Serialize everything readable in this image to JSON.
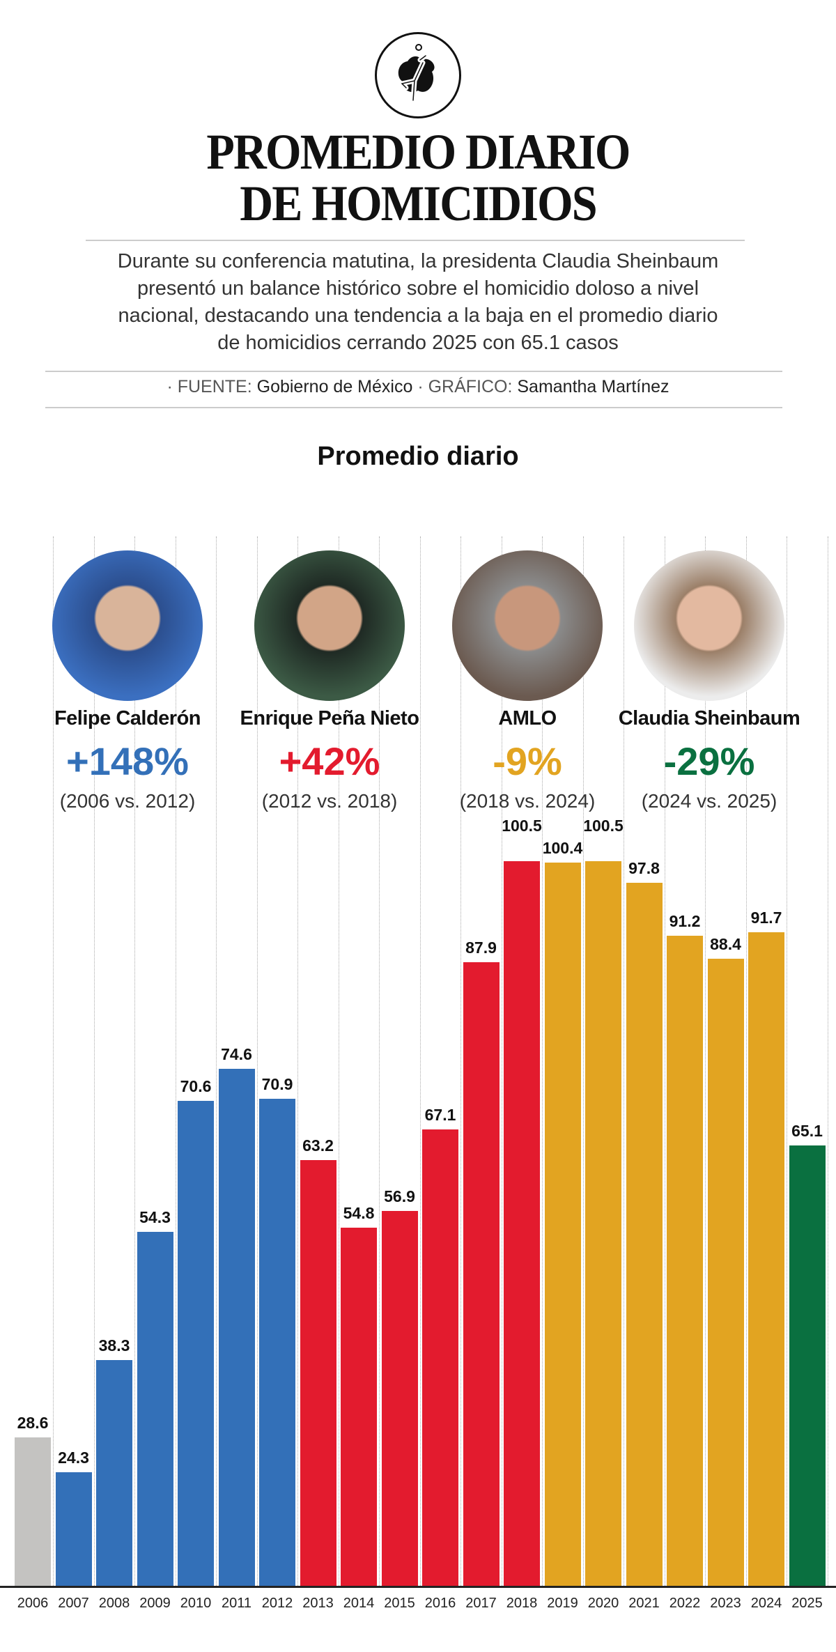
{
  "header": {
    "logo_icon": "crime-scene-body-icon",
    "title_line1": "PROMEDIO DIARIO",
    "title_line2": "DE HOMICIDIOS",
    "description": [
      "Durante su conferencia matutina, la presidenta Claudia Sheinbaum",
      "presentó un balance histórico sobre el homicidio doloso a nivel",
      "nacional, destacando una tendencia a la baja en el promedio diario",
      "de homicidios cerrando 2025 con 65.1 casos"
    ],
    "source_label": "· FUENTE:",
    "source_value": "Gobierno de México",
    "graphic_label": "· GRÁFICO:",
    "graphic_value": "Samantha Martínez"
  },
  "presidents": [
    {
      "name": "Felipe Calderón",
      "change": "+148%",
      "period": "(2006 vs. 2012)",
      "color": "#3370b8"
    },
    {
      "name": "Enrique Peña Nieto",
      "change": "+42%",
      "period": "(2012 vs. 2018)",
      "color": "#e31b2e"
    },
    {
      "name": "AMLO",
      "change": "-9%",
      "period": "(2018 vs. 2024)",
      "color": "#e2a421"
    },
    {
      "name": "Claudia Sheinbaum",
      "change": "-29%",
      "period": "(2024 vs. 2025)",
      "color": "#0a7040"
    }
  ],
  "chart_data": {
    "type": "bar",
    "title": "Promedio diario",
    "categories": [
      "2006",
      "2007",
      "2008",
      "2009",
      "2010",
      "2011",
      "2012",
      "2013",
      "2014",
      "2015",
      "2016",
      "2017",
      "2018",
      "2019",
      "2020",
      "2021",
      "2022",
      "2023",
      "2024",
      "2025"
    ],
    "values": [
      28.6,
      24.3,
      38.3,
      54.3,
      70.6,
      74.6,
      70.9,
      63.2,
      54.8,
      56.9,
      67.1,
      87.9,
      100.5,
      100.4,
      100.5,
      97.8,
      91.2,
      88.4,
      91.7,
      65.1
    ],
    "value_labels": [
      "28.6",
      "24.3",
      "38.3",
      "54.3",
      "70.6",
      "74.6",
      "70.9",
      "63.2",
      "54.8",
      "56.9",
      "67.1",
      "87.9",
      "100.5",
      "100.4",
      "100.5",
      "97.8",
      "91.2",
      "88.4",
      "91.7",
      "65.1"
    ],
    "bar_colors": [
      "#c4c3c1",
      "#3370b8",
      "#3370b8",
      "#3370b8",
      "#3370b8",
      "#3370b8",
      "#3370b8",
      "#e31b2e",
      "#e31b2e",
      "#e31b2e",
      "#e31b2e",
      "#e31b2e",
      "#e31b2e",
      "#e2a421",
      "#e2a421",
      "#e2a421",
      "#e2a421",
      "#e2a421",
      "#e2a421",
      "#0a7040"
    ],
    "xlabel": "",
    "ylabel": "",
    "ylim": [
      10,
      105
    ],
    "grid": "vertical dotted",
    "legend": "none"
  }
}
